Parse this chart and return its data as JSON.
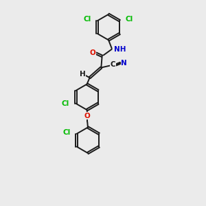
{
  "bg_color": "#ebebeb",
  "bond_color": "#1a1a1a",
  "cl_color": "#00bb00",
  "o_color": "#dd1100",
  "n_color": "#0000cc",
  "lw": 1.4,
  "ring_r": 0.28,
  "dbo": 0.022,
  "figsize": [
    3.0,
    3.0
  ],
  "dpi": 100,
  "xlim": [
    -0.3,
    1.5
  ],
  "ylim": [
    -1.6,
    2.8
  ]
}
